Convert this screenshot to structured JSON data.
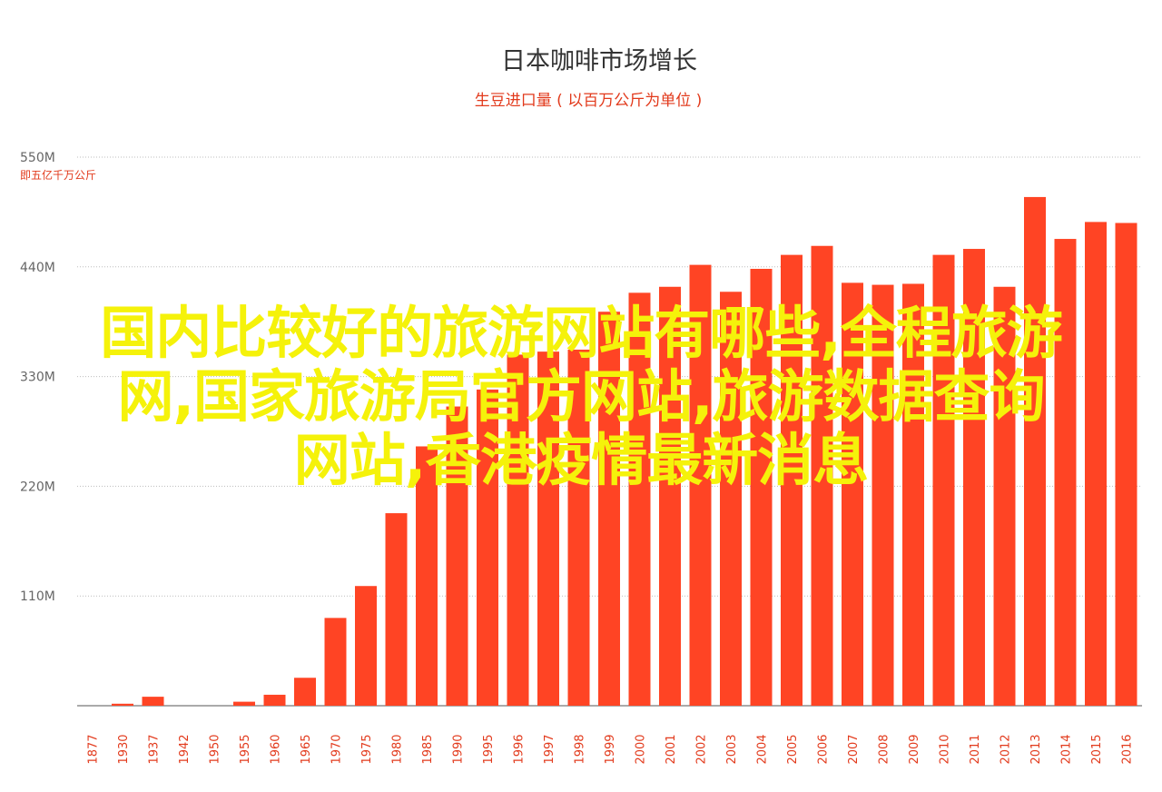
{
  "chart_data": {
    "type": "bar",
    "title": "日本咖啡市场增长",
    "subtitle": "生豆进口量 ( 以百万公斤为单位 )",
    "ylabel_note": "即五亿千万公斤",
    "ylim": [
      0,
      550
    ],
    "yticks": [
      {
        "value": 550,
        "label": "550M"
      },
      {
        "value": 440,
        "label": "440M"
      },
      {
        "value": 330,
        "label": "330M"
      },
      {
        "value": 220,
        "label": "220M"
      },
      {
        "value": 110,
        "label": "110M"
      }
    ],
    "categories": [
      "1877",
      "1930",
      "1937",
      "1942",
      "1950",
      "1955",
      "1960",
      "1965",
      "1970",
      "1975",
      "1980",
      "1985",
      "1990",
      "1995",
      "1996",
      "1997",
      "1998",
      "1999",
      "2000",
      "2001",
      "2002",
      "2003",
      "2004",
      "2005",
      "2006",
      "2007",
      "2008",
      "2009",
      "2010",
      "2011",
      "2012",
      "2013",
      "2014",
      "2015",
      "2016"
    ],
    "values": [
      0,
      2,
      9,
      0,
      0,
      4,
      11,
      28,
      88,
      120,
      193,
      260,
      300,
      317,
      352,
      355,
      357,
      395,
      414,
      420,
      442,
      415,
      438,
      452,
      461,
      424,
      422,
      423,
      452,
      458,
      420,
      510,
      468,
      485,
      484
    ],
    "bar_color": "#ff4424",
    "grid": true
  },
  "overlay": {
    "lines": [
      "国内比较好的旅游网站有哪些,全程旅游",
      "网,国家旅游局官方网站,旅游数据查询",
      "网站,香港疫情最新消息"
    ],
    "color": "#f5f20a"
  }
}
